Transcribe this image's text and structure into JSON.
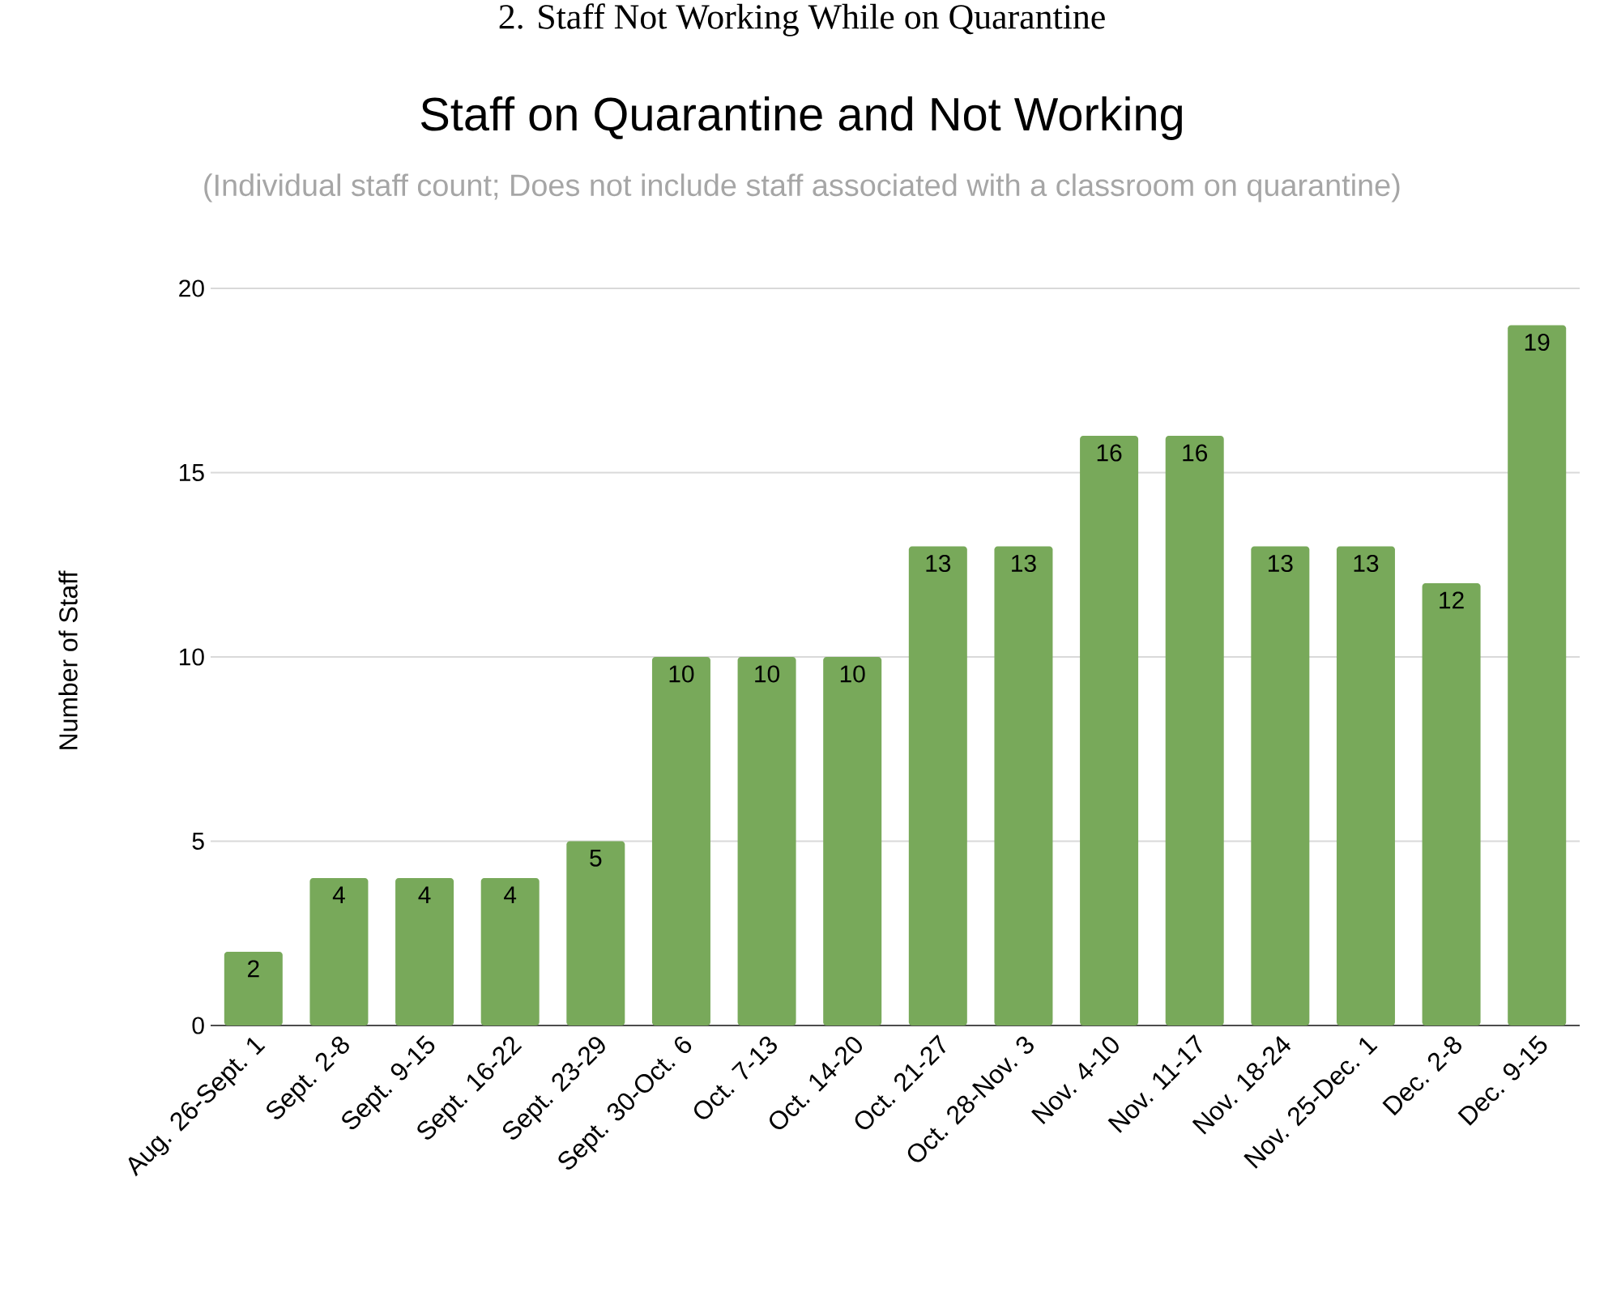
{
  "chart_data": {
    "type": "bar",
    "title": "Staff on Quarantine and Not Working",
    "subtitle": "(Individual staff count; Does not include staff associated with a classroom on quarantine)",
    "ylabel": "Number of Staff",
    "annotations": [
      "2.  Staff Not Working While on Quarantine"
    ],
    "categories": [
      "Aug. 26-Sept. 1",
      "Sept. 2-8",
      "Sept. 9-15",
      "Sept. 16-22",
      "Sept. 23-29",
      "Sept. 30-Oct. 6",
      "Oct. 7-13",
      "Oct. 14-20",
      "Oct. 21-27",
      "Oct. 28-Nov. 3",
      "Nov. 4-10",
      "Nov. 11-17",
      "Nov. 18-24",
      "Nov. 25-Dec. 1",
      "Dec. 2-8",
      "Dec. 9-15"
    ],
    "values": [
      2,
      4,
      4,
      4,
      5,
      10,
      10,
      10,
      13,
      13,
      16,
      16,
      13,
      13,
      12,
      19
    ],
    "color": "#78a95a",
    "ylim": [
      0,
      20
    ],
    "yticks": [
      0,
      5,
      10,
      15,
      20
    ],
    "grid": "y",
    "data_labels": true
  }
}
